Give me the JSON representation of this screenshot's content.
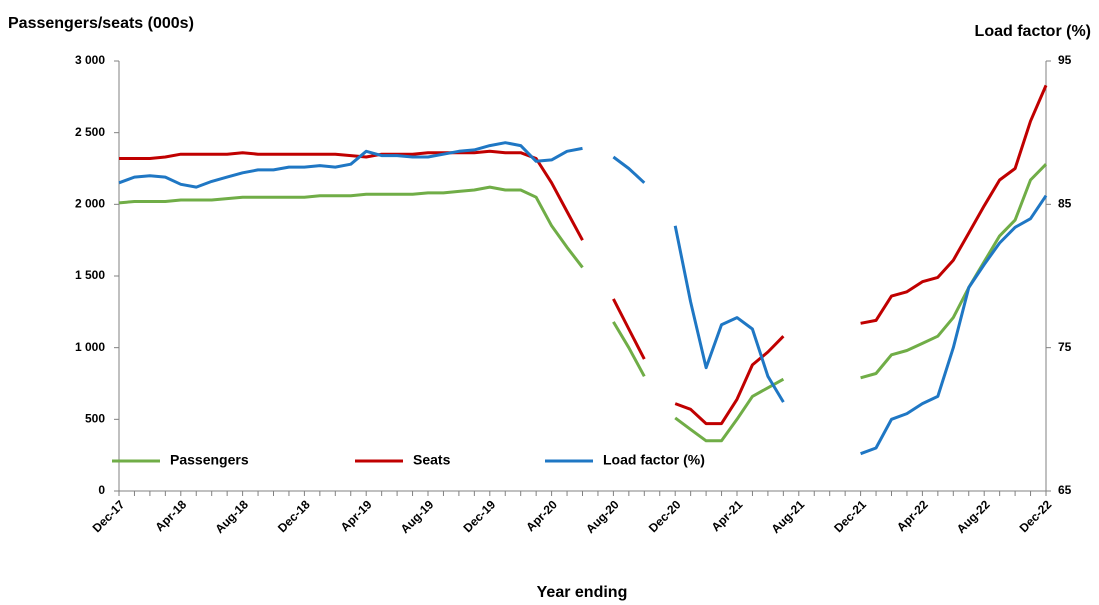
{
  "chart_data": {
    "type": "line",
    "y_title": "Passengers/seats (000s)",
    "y2_title": "Load factor (%)",
    "x_title": "Year ending",
    "categories": [
      "Dec-17",
      null,
      null,
      null,
      "Apr-18",
      null,
      null,
      null,
      "Aug-18",
      null,
      null,
      null,
      "Dec-18",
      null,
      null,
      null,
      "Apr-19",
      null,
      null,
      null,
      "Aug-19",
      null,
      null,
      null,
      "Dec-19",
      null,
      null,
      null,
      "Apr-20",
      null,
      null,
      null,
      "Aug-20",
      null,
      null,
      null,
      "Dec-20",
      null,
      null,
      null,
      "Apr-21",
      null,
      null,
      null,
      "Aug-21",
      null,
      null,
      null,
      "Dec-21",
      null,
      null,
      null,
      "Apr-22",
      null,
      null,
      null,
      "Aug-22",
      null,
      null,
      null,
      "Dec-22"
    ],
    "series": [
      {
        "name": "Passengers",
        "color": "#70ad47",
        "values": [
          2010,
          2020,
          2020,
          2020,
          2030,
          2030,
          2030,
          2040,
          2050,
          2050,
          2050,
          2050,
          2050,
          2060,
          2060,
          2060,
          2070,
          2070,
          2070,
          2070,
          2080,
          2080,
          2090,
          2100,
          2120,
          2100,
          2100,
          2050,
          1850,
          1700,
          1560,
          null,
          1180,
          1000,
          800,
          null,
          510,
          430,
          350,
          350,
          500,
          660,
          720,
          780,
          null,
          null,
          null,
          null,
          790,
          820,
          950,
          980,
          1030,
          1080,
          1210,
          1420,
          1600,
          1780,
          1890,
          2170,
          2280
        ]
      },
      {
        "name": "Seats",
        "color": "#c00000",
        "values": [
          2320,
          2320,
          2320,
          2330,
          2350,
          2350,
          2350,
          2350,
          2360,
          2350,
          2350,
          2350,
          2350,
          2350,
          2350,
          2340,
          2330,
          2350,
          2350,
          2350,
          2360,
          2360,
          2360,
          2360,
          2370,
          2360,
          2360,
          2320,
          2150,
          1950,
          1750,
          null,
          1340,
          1130,
          920,
          null,
          610,
          570,
          470,
          470,
          640,
          880,
          970,
          1080,
          null,
          null,
          null,
          null,
          1170,
          1190,
          1360,
          1390,
          1460,
          1490,
          1610,
          1800,
          1990,
          2170,
          2250,
          2580,
          2830
        ]
      },
      {
        "name": "Load factor (%)",
        "color": "#1f77c4",
        "axis": "y2",
        "values": [
          86.5,
          86.9,
          87.0,
          86.9,
          86.4,
          86.2,
          86.6,
          86.9,
          87.2,
          87.4,
          87.4,
          87.6,
          87.6,
          87.7,
          87.6,
          87.8,
          88.7,
          88.4,
          88.4,
          88.3,
          88.3,
          88.5,
          88.7,
          88.8,
          89.1,
          89.3,
          89.1,
          88.0,
          88.1,
          88.7,
          88.9,
          null,
          88.3,
          87.5,
          86.5,
          null,
          83.5,
          78.2,
          73.6,
          76.6,
          77.1,
          76.3,
          73.0,
          71.2,
          null,
          null,
          null,
          null,
          67.6,
          68.0,
          70.0,
          70.4,
          71.1,
          71.6,
          75.0,
          79.2,
          80.8,
          82.3,
          83.4,
          84.0,
          85.6
        ]
      }
    ],
    "ylim": [
      0,
      3000
    ],
    "yticks": [
      0,
      500,
      {
        "value": 1000,
        "label": "1 000"
      },
      {
        "value": 1500,
        "label": "1 500"
      },
      {
        "value": 2000,
        "label": "2 000"
      },
      {
        "value": 2500,
        "label": "2 500"
      },
      {
        "value": 3000,
        "label": "3 000"
      }
    ],
    "y2lim": [
      65,
      95
    ],
    "y2ticks": [
      65,
      75,
      85,
      95
    ],
    "legend": "lower left",
    "grid": false
  }
}
